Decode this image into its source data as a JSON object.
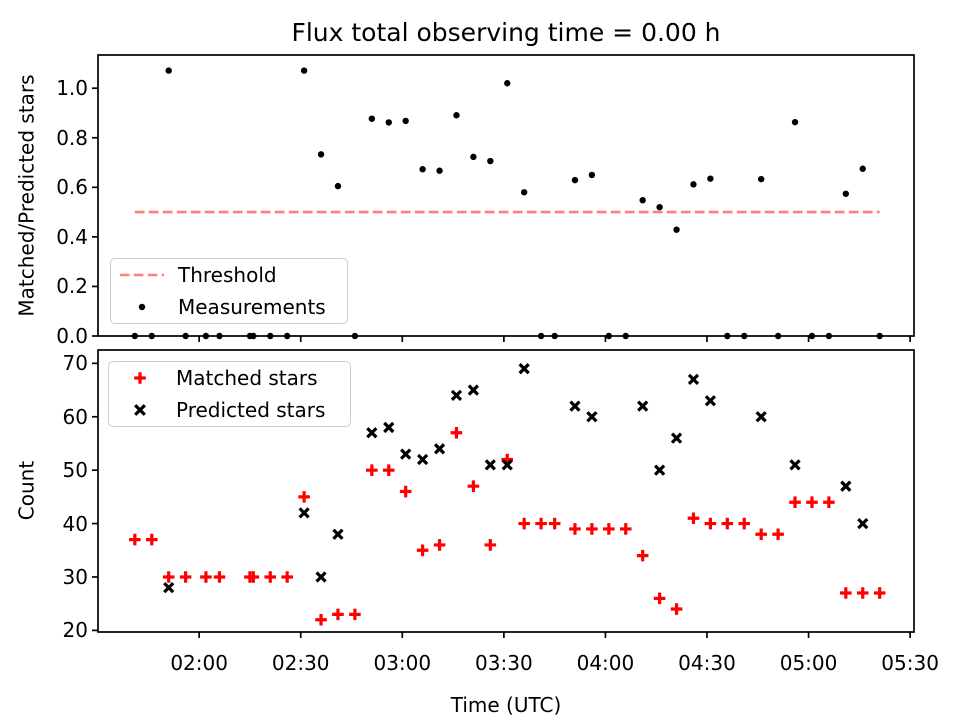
{
  "x_axis": {
    "label": "Time (UTC)",
    "lim_hours": [
      1.502,
      5.519
    ],
    "ticks": [
      "02:00",
      "02:30",
      "03:00",
      "03:30",
      "04:00",
      "04:30",
      "05:00",
      "05:30"
    ]
  },
  "chart_data": [
    {
      "type": "scatter",
      "axes": "top",
      "title": "Flux total observing time = 0.00 h",
      "ylabel": "Matched/Predicted stars",
      "ylim": [
        0,
        1.134
      ],
      "grid": false,
      "yticks": [
        {
          "v": 0.0,
          "label": "0.0"
        },
        {
          "v": 0.2,
          "label": "0.2"
        },
        {
          "v": 0.4,
          "label": "0.4"
        },
        {
          "v": 0.6,
          "label": "0.6"
        },
        {
          "v": 0.8,
          "label": "0.8"
        },
        {
          "v": 1.0,
          "label": "1.0"
        }
      ],
      "legend": {
        "position": "lower left",
        "entries": [
          {
            "label": "Threshold",
            "marker": "dashed-line",
            "color": "#ff7f7f"
          },
          {
            "label": "Measurements",
            "marker": "dot",
            "color": "#000000"
          }
        ]
      },
      "threshold": {
        "y": 0.5,
        "from": "01:41",
        "to": "05:21",
        "color": "#ff7f7f",
        "style": "dashed"
      },
      "series": [
        {
          "name": "Measurements",
          "marker": "dot",
          "color": "#000000",
          "times": [
            "01:41",
            "01:46",
            "01:51",
            "01:56",
            "02:02",
            "02:06",
            "02:15",
            "02:16",
            "02:21",
            "02:26",
            "02:31",
            "02:36",
            "02:41",
            "02:46",
            "02:51",
            "02:56",
            "03:01",
            "03:06",
            "03:11",
            "03:16",
            "03:21",
            "03:26",
            "03:31",
            "03:36",
            "03:41",
            "03:45",
            "03:51",
            "03:56",
            "04:01",
            "04:06",
            "04:11",
            "04:16",
            "04:21",
            "04:26",
            "04:31",
            "04:36",
            "04:41",
            "04:46",
            "04:51",
            "04:56",
            "05:01",
            "05:06",
            "05:11",
            "05:16",
            "05:21"
          ],
          "values": [
            0,
            0,
            1.071,
            0,
            0,
            0,
            0,
            0,
            0,
            0,
            1.071,
            0.733,
            0.605,
            0,
            0.877,
            0.862,
            0.868,
            0.673,
            0.667,
            0.891,
            0.723,
            0.706,
            1.02,
            0.58,
            0,
            0,
            0.629,
            0.65,
            0,
            0,
            0.548,
            0.52,
            0.429,
            0.612,
            0.635,
            0,
            0,
            0.633,
            0,
            0.863,
            0,
            0,
            0.574,
            0.675,
            0
          ]
        }
      ]
    },
    {
      "type": "scatter",
      "axes": "bottom",
      "ylabel": "Count",
      "ylim": [
        19.7,
        72.5
      ],
      "grid": false,
      "yticks": [
        {
          "v": 20,
          "label": "20"
        },
        {
          "v": 30,
          "label": "30"
        },
        {
          "v": 40,
          "label": "40"
        },
        {
          "v": 50,
          "label": "50"
        },
        {
          "v": 60,
          "label": "60"
        },
        {
          "v": 70,
          "label": "70"
        }
      ],
      "legend": {
        "position": "upper left",
        "entries": [
          {
            "label": "Matched stars",
            "marker": "plus",
            "color": "#ff0000"
          },
          {
            "label": "Predicted stars",
            "marker": "x",
            "color": "#000000"
          }
        ]
      },
      "series": [
        {
          "name": "Matched stars",
          "marker": "plus",
          "color": "#ff0000",
          "times": [
            "01:41",
            "01:46",
            "01:51",
            "01:56",
            "02:02",
            "02:06",
            "02:15",
            "02:16",
            "02:21",
            "02:26",
            "02:31",
            "02:36",
            "02:41",
            "02:46",
            "02:51",
            "02:56",
            "03:01",
            "03:06",
            "03:11",
            "03:16",
            "03:21",
            "03:26",
            "03:31",
            "03:36",
            "03:41",
            "03:45",
            "03:51",
            "03:56",
            "04:01",
            "04:06",
            "04:11",
            "04:16",
            "04:21",
            "04:26",
            "04:31",
            "04:36",
            "04:41",
            "04:46",
            "04:51",
            "04:56",
            "05:01",
            "05:06",
            "05:11",
            "05:16",
            "05:21"
          ],
          "values": [
            37,
            37,
            30,
            30,
            30,
            30,
            30,
            30,
            30,
            30,
            45,
            22,
            23,
            23,
            50,
            50,
            46,
            35,
            36,
            57,
            47,
            36,
            52,
            40,
            40,
            40,
            39,
            39,
            39,
            39,
            34,
            26,
            24,
            41,
            40,
            40,
            40,
            38,
            38,
            44,
            44,
            44,
            27,
            27,
            27
          ]
        },
        {
          "name": "Predicted stars",
          "marker": "x",
          "color": "#000000",
          "times": [
            "01:51",
            "02:31",
            "02:36",
            "02:41",
            "02:51",
            "02:56",
            "03:01",
            "03:06",
            "03:11",
            "03:16",
            "03:21",
            "03:26",
            "03:31",
            "03:36",
            "03:51",
            "03:56",
            "04:11",
            "04:16",
            "04:21",
            "04:26",
            "04:31",
            "04:46",
            "04:56",
            "05:11",
            "05:16"
          ],
          "values": [
            28,
            42,
            30,
            38,
            57,
            58,
            53,
            52,
            54,
            64,
            65,
            51,
            51,
            69,
            62,
            60,
            62,
            50,
            56,
            67,
            63,
            60,
            51,
            47,
            40
          ]
        }
      ]
    }
  ]
}
